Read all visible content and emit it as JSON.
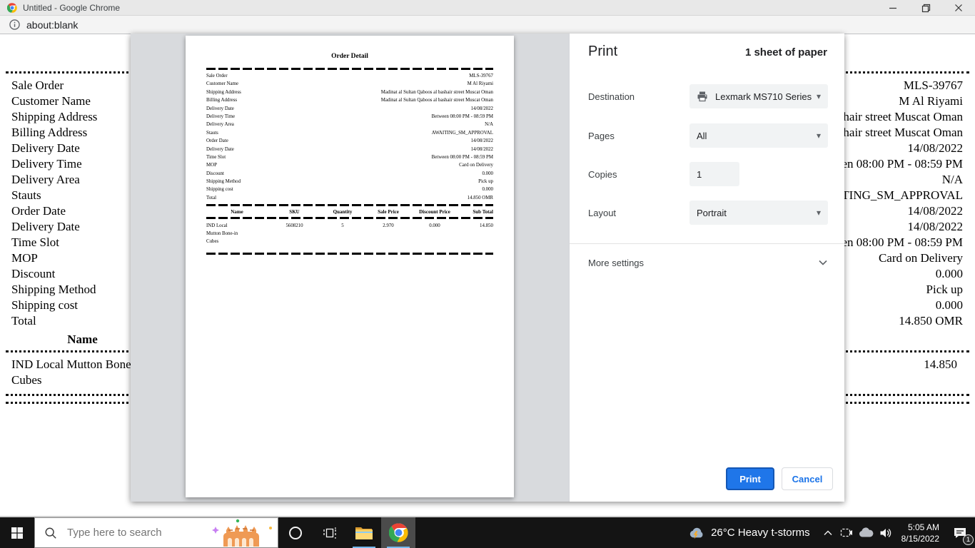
{
  "window": {
    "title": "Untitled - Google Chrome",
    "url": "about:blank"
  },
  "page": {
    "detail_rows": [
      {
        "label": "Sale Order",
        "value": "MLS-39767"
      },
      {
        "label": "Customer Name",
        "value": "M Al Riyami"
      },
      {
        "label": "Shipping Address",
        "value": "Madinat al Sultan Qaboos al bashair street Muscat Oman"
      },
      {
        "label": "Billing Address",
        "value": "Madinat al Sultan Qaboos al bashair street Muscat Oman"
      },
      {
        "label": "Delivery Date",
        "value": "14/08/2022"
      },
      {
        "label": "Delivery Time",
        "value": "Between 08:00 PM - 08:59 PM"
      },
      {
        "label": "Delivery Area",
        "value": "N/A"
      },
      {
        "label": "Stauts",
        "value": "AWAITING_SM_APPROVAL"
      },
      {
        "label": "Order Date",
        "value": "14/08/2022"
      },
      {
        "label": "Delivery Date",
        "value": "14/08/2022"
      },
      {
        "label": "Time Slot",
        "value": "Between 08:00 PM - 08:59 PM"
      },
      {
        "label": "MOP",
        "value": "Card on Delivery"
      },
      {
        "label": "Discount",
        "value": "0.000"
      },
      {
        "label": "Shipping Method",
        "value": "Pick up"
      },
      {
        "label": "Shipping cost",
        "value": "0.000"
      },
      {
        "label": "Total",
        "value": "14.850 OMR"
      }
    ],
    "items_table": {
      "headers": [
        "Name",
        "SKU",
        "Quantity",
        "Sale Price",
        "Discount Price",
        "Sub Total"
      ],
      "rows": [
        {
          "name": "IND Local Mutton Bone-in Cubes",
          "sku": "5608210",
          "quantity": "5",
          "sale_price": "2.970",
          "discount_price": "0.000",
          "sub_total": "14.850"
        }
      ]
    }
  },
  "preview": {
    "document_title": "Order Detail"
  },
  "print_dialog": {
    "title": "Print",
    "sheet_info": "1 sheet of paper",
    "destination_label": "Destination",
    "destination_value": "Lexmark MS710 Series",
    "pages_label": "Pages",
    "pages_value": "All",
    "copies_label": "Copies",
    "copies_value": "1",
    "layout_label": "Layout",
    "layout_value": "Portrait",
    "more_settings_label": "More settings",
    "print_button": "Print",
    "cancel_button": "Cancel"
  },
  "taskbar": {
    "search_placeholder": "Type here to search",
    "weather": "26°C  Heavy t-storms",
    "time": "5:05 AM",
    "date": "8/15/2022",
    "notification_count": "1"
  },
  "icons": {
    "caret_down": "▾"
  },
  "colors": {
    "accent_blue": "#1a73e8",
    "preview_backdrop": "#d8dadd",
    "control_fill": "#f1f3f4",
    "taskbar_bg": "#141414",
    "taskbar_underline": "#76b9ed"
  }
}
